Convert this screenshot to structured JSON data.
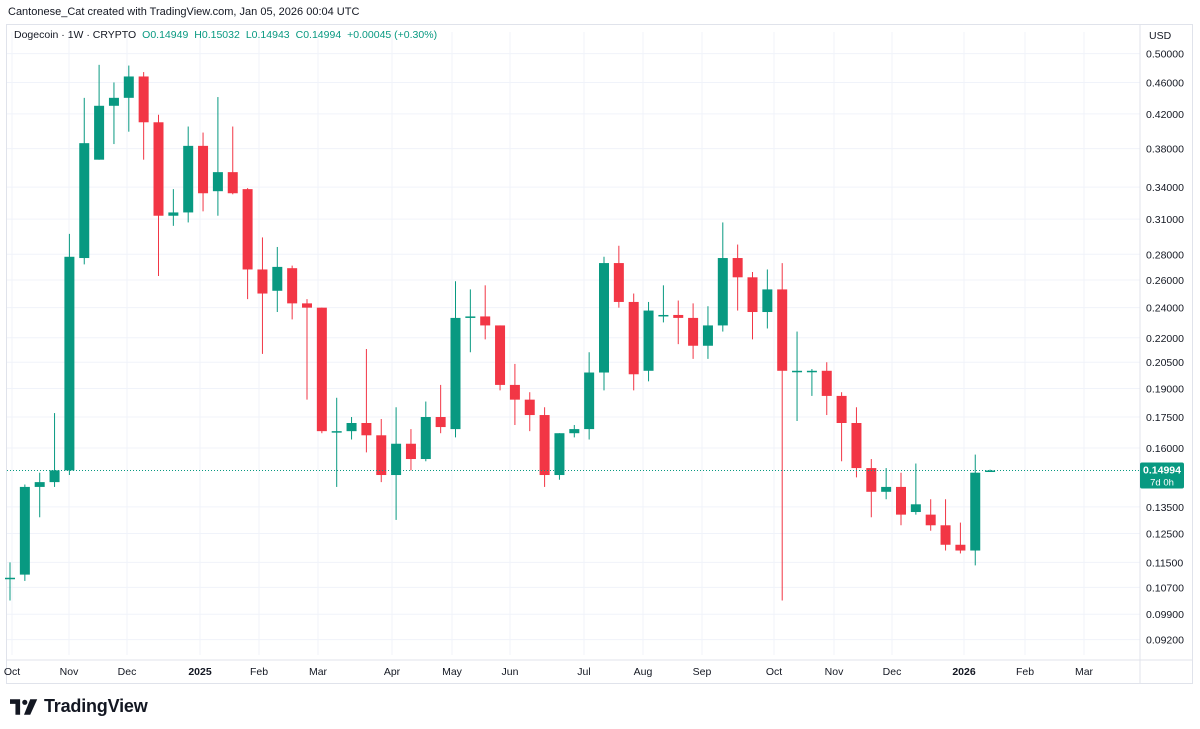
{
  "header": {
    "attribution": "Cantonese_Cat created with TradingView.com, Jan 05, 2026 00:04 UTC"
  },
  "legend": {
    "symbol": "Dogecoin · 1W · CRYPTO",
    "open": "O0.14949",
    "high": "H0.15032",
    "low": "L0.14943",
    "close": "C0.14994",
    "change": "+0.00045 (+0.30%)"
  },
  "brand": {
    "name": "TradingView"
  },
  "colors": {
    "up": "#089981",
    "down": "#f23645",
    "grid": "#f0f3fa",
    "axis_text": "#131722"
  },
  "chart_data": {
    "type": "candlestick",
    "title": "Dogecoin · 1W · CRYPTO",
    "currency": "USD",
    "scale": "log",
    "ylim": [
      0.088,
      0.52
    ],
    "y_ticks": [
      "0.50000",
      "0.46000",
      "0.42000",
      "0.38000",
      "0.34000",
      "0.31000",
      "0.28000",
      "0.26000",
      "0.24000",
      "0.22000",
      "0.20500",
      "0.19000",
      "0.17500",
      "0.16000",
      "0.13500",
      "0.12500",
      "0.11500",
      "0.10700",
      "0.09900",
      "0.09200"
    ],
    "x_ticks": [
      "Oct",
      "Nov",
      "Dec",
      "2025",
      "Feb",
      "Mar",
      "Apr",
      "May",
      "Jun",
      "Jul",
      "Aug",
      "Sep",
      "Oct",
      "Nov",
      "Dec",
      "2026",
      "Feb",
      "Mar"
    ],
    "last_price": {
      "value": 0.14994,
      "label": "0.14994",
      "countdown": "7d 0h"
    },
    "candles": [
      {
        "o": 0.11,
        "h": 0.115,
        "l": 0.103,
        "c": 0.11
      },
      {
        "o": 0.111,
        "h": 0.144,
        "l": 0.109,
        "c": 0.143
      },
      {
        "o": 0.143,
        "h": 0.149,
        "l": 0.131,
        "c": 0.145
      },
      {
        "o": 0.145,
        "h": 0.177,
        "l": 0.143,
        "c": 0.15
      },
      {
        "o": 0.15,
        "h": 0.297,
        "l": 0.148,
        "c": 0.278
      },
      {
        "o": 0.277,
        "h": 0.44,
        "l": 0.272,
        "c": 0.386
      },
      {
        "o": 0.368,
        "h": 0.484,
        "l": 0.368,
        "c": 0.43
      },
      {
        "o": 0.43,
        "h": 0.46,
        "l": 0.385,
        "c": 0.44
      },
      {
        "o": 0.44,
        "h": 0.483,
        "l": 0.399,
        "c": 0.468
      },
      {
        "o": 0.468,
        "h": 0.474,
        "l": 0.368,
        "c": 0.41
      },
      {
        "o": 0.41,
        "h": 0.419,
        "l": 0.263,
        "c": 0.313
      },
      {
        "o": 0.313,
        "h": 0.338,
        "l": 0.304,
        "c": 0.316
      },
      {
        "o": 0.316,
        "h": 0.405,
        "l": 0.307,
        "c": 0.383
      },
      {
        "o": 0.383,
        "h": 0.398,
        "l": 0.317,
        "c": 0.334
      },
      {
        "o": 0.336,
        "h": 0.441,
        "l": 0.313,
        "c": 0.355
      },
      {
        "o": 0.355,
        "h": 0.405,
        "l": 0.333,
        "c": 0.334
      },
      {
        "o": 0.338,
        "h": 0.339,
        "l": 0.246,
        "c": 0.268
      },
      {
        "o": 0.268,
        "h": 0.294,
        "l": 0.21,
        "c": 0.25
      },
      {
        "o": 0.252,
        "h": 0.286,
        "l": 0.237,
        "c": 0.27
      },
      {
        "o": 0.269,
        "h": 0.271,
        "l": 0.232,
        "c": 0.243
      },
      {
        "o": 0.243,
        "h": 0.246,
        "l": 0.184,
        "c": 0.24
      },
      {
        "o": 0.24,
        "h": 0.24,
        "l": 0.167,
        "c": 0.168
      },
      {
        "o": 0.168,
        "h": 0.185,
        "l": 0.143,
        "c": 0.168
      },
      {
        "o": 0.168,
        "h": 0.175,
        "l": 0.164,
        "c": 0.172
      },
      {
        "o": 0.172,
        "h": 0.213,
        "l": 0.158,
        "c": 0.166
      },
      {
        "o": 0.166,
        "h": 0.174,
        "l": 0.145,
        "c": 0.148
      },
      {
        "o": 0.148,
        "h": 0.18,
        "l": 0.13,
        "c": 0.162
      },
      {
        "o": 0.162,
        "h": 0.169,
        "l": 0.15,
        "c": 0.155
      },
      {
        "o": 0.155,
        "h": 0.183,
        "l": 0.154,
        "c": 0.175
      },
      {
        "o": 0.175,
        "h": 0.192,
        "l": 0.167,
        "c": 0.17
      },
      {
        "o": 0.169,
        "h": 0.259,
        "l": 0.165,
        "c": 0.233
      },
      {
        "o": 0.233,
        "h": 0.253,
        "l": 0.211,
        "c": 0.234
      },
      {
        "o": 0.234,
        "h": 0.256,
        "l": 0.219,
        "c": 0.228
      },
      {
        "o": 0.228,
        "h": 0.228,
        "l": 0.189,
        "c": 0.192
      },
      {
        "o": 0.192,
        "h": 0.204,
        "l": 0.171,
        "c": 0.184
      },
      {
        "o": 0.184,
        "h": 0.188,
        "l": 0.168,
        "c": 0.176
      },
      {
        "o": 0.176,
        "h": 0.18,
        "l": 0.143,
        "c": 0.148
      },
      {
        "o": 0.148,
        "h": 0.167,
        "l": 0.146,
        "c": 0.167
      },
      {
        "o": 0.167,
        "h": 0.171,
        "l": 0.165,
        "c": 0.169
      },
      {
        "o": 0.169,
        "h": 0.211,
        "l": 0.164,
        "c": 0.199
      },
      {
        "o": 0.199,
        "h": 0.278,
        "l": 0.189,
        "c": 0.273
      },
      {
        "o": 0.273,
        "h": 0.287,
        "l": 0.24,
        "c": 0.244
      },
      {
        "o": 0.244,
        "h": 0.25,
        "l": 0.189,
        "c": 0.198
      },
      {
        "o": 0.2,
        "h": 0.244,
        "l": 0.194,
        "c": 0.238
      },
      {
        "o": 0.235,
        "h": 0.256,
        "l": 0.23,
        "c": 0.235
      },
      {
        "o": 0.235,
        "h": 0.245,
        "l": 0.216,
        "c": 0.233
      },
      {
        "o": 0.233,
        "h": 0.243,
        "l": 0.207,
        "c": 0.215
      },
      {
        "o": 0.215,
        "h": 0.241,
        "l": 0.207,
        "c": 0.228
      },
      {
        "o": 0.228,
        "h": 0.307,
        "l": 0.224,
        "c": 0.277
      },
      {
        "o": 0.277,
        "h": 0.288,
        "l": 0.238,
        "c": 0.262
      },
      {
        "o": 0.262,
        "h": 0.266,
        "l": 0.219,
        "c": 0.237
      },
      {
        "o": 0.237,
        "h": 0.268,
        "l": 0.226,
        "c": 0.253
      },
      {
        "o": 0.253,
        "h": 0.273,
        "l": 0.103,
        "c": 0.2
      },
      {
        "o": 0.2,
        "h": 0.224,
        "l": 0.173,
        "c": 0.2
      },
      {
        "o": 0.2,
        "h": 0.201,
        "l": 0.186,
        "c": 0.2
      },
      {
        "o": 0.2,
        "h": 0.205,
        "l": 0.176,
        "c": 0.186
      },
      {
        "o": 0.186,
        "h": 0.188,
        "l": 0.154,
        "c": 0.172
      },
      {
        "o": 0.172,
        "h": 0.18,
        "l": 0.147,
        "c": 0.151
      },
      {
        "o": 0.151,
        "h": 0.155,
        "l": 0.131,
        "c": 0.141
      },
      {
        "o": 0.141,
        "h": 0.151,
        "l": 0.138,
        "c": 0.143
      },
      {
        "o": 0.143,
        "h": 0.149,
        "l": 0.128,
        "c": 0.132
      },
      {
        "o": 0.133,
        "h": 0.153,
        "l": 0.132,
        "c": 0.136
      },
      {
        "o": 0.132,
        "h": 0.138,
        "l": 0.126,
        "c": 0.128
      },
      {
        "o": 0.128,
        "h": 0.138,
        "l": 0.119,
        "c": 0.121
      },
      {
        "o": 0.121,
        "h": 0.129,
        "l": 0.118,
        "c": 0.119
      },
      {
        "o": 0.119,
        "h": 0.157,
        "l": 0.114,
        "c": 0.149
      },
      {
        "o": 0.14949,
        "h": 0.15032,
        "l": 0.14943,
        "c": 0.14994
      }
    ]
  }
}
